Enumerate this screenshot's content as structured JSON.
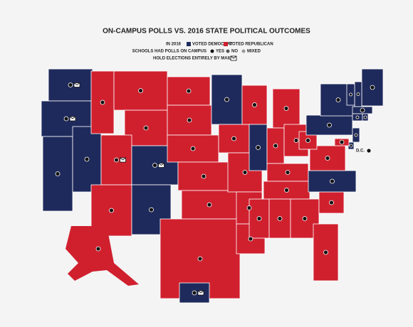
{
  "title": "ON-CAMPUS POLLS VS. 2016 STATE POLITICAL OUTCOMES",
  "legend": {
    "year": "IN 2016",
    "parties": [
      {
        "label": "VOTED DEMOCRAT",
        "color": "#1f2a5c"
      },
      {
        "label": "VOTED REPUBLICAN",
        "color": "#d0202e"
      }
    ],
    "polls": {
      "label": "SCHOOLS HAD POLLS ON CAMPUS",
      "options": [
        {
          "label": "YES",
          "color": "#111111"
        },
        {
          "label": "NO",
          "color": "#555555"
        },
        {
          "label": "MIXED",
          "color": "#999999"
        }
      ]
    },
    "mail": "HOLD ELECTIONS ENTIRELY BY MAIL"
  },
  "dc": {
    "label": "D.C.",
    "poll": 0
  },
  "states": [
    {
      "party": 0,
      "poll": 0,
      "mail": true
    },
    {
      "party": 0,
      "poll": 0,
      "mail": true
    },
    {
      "party": 0,
      "poll": 0,
      "mail": false
    },
    {
      "party": 0,
      "poll": 0,
      "mail": false
    },
    {
      "party": 1,
      "poll": 0,
      "mail": false
    },
    {
      "party": 1,
      "poll": 0,
      "mail": false
    },
    {
      "party": 1,
      "poll": 0,
      "mail": false
    },
    {
      "party": 1,
      "poll": 0,
      "mail": true
    },
    {
      "party": 0,
      "poll": 0,
      "mail": true
    },
    {
      "party": 1,
      "poll": 0,
      "mail": false
    },
    {
      "party": 0,
      "poll": 0,
      "mail": false
    },
    {
      "party": 1,
      "poll": 0,
      "mail": false
    },
    {
      "party": 1,
      "poll": 0,
      "mail": false
    },
    {
      "party": 1,
      "poll": 0,
      "mail": false
    },
    {
      "party": 1,
      "poll": 0,
      "mail": false
    },
    {
      "party": 1,
      "poll": 0,
      "mail": false
    },
    {
      "party": 1,
      "poll": 0,
      "mail": false
    },
    {
      "party": 0,
      "poll": 0,
      "mail": false
    },
    {
      "party": 1,
      "poll": 0,
      "mail": false
    },
    {
      "party": 1,
      "poll": 0,
      "mail": false
    },
    {
      "party": 1,
      "poll": 0,
      "mail": false
    },
    {
      "party": 1,
      "poll": 0,
      "mail": false
    },
    {
      "party": 1,
      "poll": 0,
      "mail": false
    },
    {
      "party": 0,
      "poll": 0,
      "mail": false
    },
    {
      "party": 1,
      "poll": 0,
      "mail": false
    },
    {
      "party": 1,
      "poll": 0,
      "mail": false
    },
    {
      "party": 1,
      "poll": 0,
      "mail": false
    },
    {
      "party": 1,
      "poll": 0,
      "mail": false
    },
    {
      "party": 1,
      "poll": 0,
      "mail": false
    },
    {
      "party": 1,
      "poll": 0,
      "mail": false
    },
    {
      "party": 1,
      "poll": 0,
      "mail": false
    },
    {
      "party": 1,
      "poll": 0,
      "mail": false
    },
    {
      "party": 1,
      "poll": 0,
      "mail": false
    },
    {
      "party": 1,
      "poll": 0,
      "mail": false
    },
    {
      "party": 0,
      "poll": 0,
      "mail": false
    },
    {
      "party": 1,
      "poll": 0,
      "mail": false
    },
    {
      "party": 1,
      "poll": 0,
      "mail": false
    },
    {
      "party": 0,
      "poll": 0,
      "mail": false
    },
    {
      "party": 0,
      "poll": 0,
      "mail": false
    },
    {
      "party": 0,
      "poll": 0,
      "mail": false
    },
    {
      "party": 0,
      "poll": 0,
      "mail": false
    },
    {
      "party": 0,
      "poll": 0,
      "mail": false
    },
    {
      "party": 0,
      "poll": 0,
      "mail": false
    },
    {
      "party": 0,
      "poll": 0,
      "mail": false
    },
    {
      "party": 0,
      "poll": 0,
      "mail": false
    },
    {
      "party": 0,
      "poll": 0,
      "mail": false
    },
    {
      "party": 0,
      "poll": 0,
      "mail": false
    },
    {
      "party": 1,
      "poll": 0,
      "mail": false
    },
    {
      "party": 0,
      "poll": 0,
      "mail": true
    }
  ]
}
